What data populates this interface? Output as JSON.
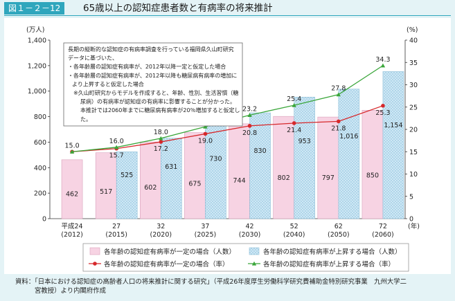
{
  "header": {
    "badge": "図１－２－12",
    "title": "65歳以上の認知症患者数と有病率の将来推計"
  },
  "chart_data": {
    "type": "bar",
    "categories": [
      {
        "year": "平成24",
        "ad": "(2012)"
      },
      {
        "year": "27",
        "ad": "(2015)"
      },
      {
        "year": "32",
        "ad": "(2020)"
      },
      {
        "year": "37",
        "ad": "(2025)"
      },
      {
        "year": "42",
        "ad": "(2030)"
      },
      {
        "year": "52",
        "ad": "(2040)"
      },
      {
        "year": "62",
        "ad": "(2050)"
      },
      {
        "year": "72",
        "ad": "(2060)"
      }
    ],
    "x_unit": "(年)",
    "y_left": {
      "unit": "(万人)",
      "min": 0,
      "max": 1400,
      "ticks": [
        "0",
        "200",
        "400",
        "600",
        "800",
        "1,000",
        "1,200",
        "1,400"
      ]
    },
    "y_right": {
      "unit": "(%)",
      "min": 0,
      "max": 40,
      "ticks": [
        "0",
        "5",
        "10",
        "15",
        "20",
        "25",
        "30",
        "35",
        "40"
      ]
    },
    "bar_series": [
      {
        "name": "各年齢の認知症有病率が一定の場合（人数）",
        "values": [
          462,
          517,
          602,
          675,
          744,
          802,
          797,
          850
        ],
        "labels": [
          "462",
          "517",
          "602",
          "675",
          "744",
          "802",
          "797",
          "850"
        ],
        "color": "#f7d3e3"
      },
      {
        "name": "各年齢の認知症有病率が上昇する場合（人数）",
        "values": [
          null,
          525,
          631,
          730,
          830,
          953,
          1016,
          1154
        ],
        "labels": [
          "",
          "525",
          "631",
          "730",
          "830",
          "953",
          "1,016",
          "1,154"
        ],
        "color": "#cfe8f5"
      }
    ],
    "line_series": [
      {
        "name": "各年齢の認知症有病率が一定の場合（率）",
        "values": [
          15.0,
          15.7,
          17.2,
          19.0,
          20.8,
          21.4,
          21.8,
          25.3
        ],
        "labels": [
          "",
          "15.7",
          "17.2",
          "19.0",
          "20.8",
          "21.4",
          "21.8",
          "25.3"
        ],
        "color": "#d6282b"
      },
      {
        "name": "各年齢の認知症有病率が上昇する場合（率）",
        "values": [
          15.0,
          16.0,
          18.0,
          20.6,
          23.2,
          25.4,
          27.8,
          34.3
        ],
        "labels": [
          "15.0",
          "16.0",
          "18.0",
          "20.6",
          "23.2",
          "25.4",
          "27.8",
          "34.3"
        ],
        "color": "#3aa63a"
      }
    ],
    "annotation": [
      "長期の縦断的な認知症の有病率調査を行っている福岡県久山町研究",
      "データに基づいた、",
      "・各年齢層の認知症有病率が、2012年以降一定と仮定した場合",
      "・各年齢層の認知症有病率が、2012年以降も糖尿病有病率の増加に",
      "より上昇すると仮定した場合",
      "※久山町研究からモデルを作成すると、年齢、性別、生活習慣（糖",
      "尿病）の有病率が認知症の有病率に影響することが分かった。",
      "本推計では2060年までに糖尿病有病率が20％増加すると仮定し",
      "た。"
    ],
    "legend_position": "bottom"
  },
  "source": [
    "資料：「日本における認知症の高齢者人口の将来推計に関する研究」（平成26年度厚生労働科学研究費補助金特別研究事業　九州大学二",
    "宮教授）より内閣府作成"
  ]
}
